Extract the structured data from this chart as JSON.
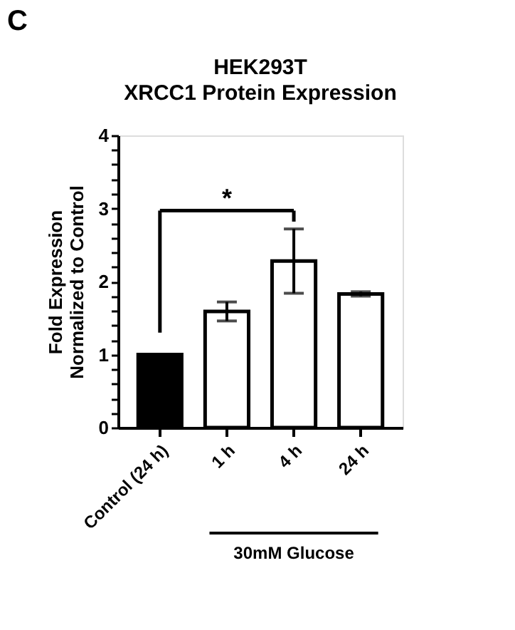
{
  "chart_data": {
    "type": "bar",
    "title": "HEK293T\nXRCC1 Protein Expression",
    "ylabel": "Fold Expression\nNormalized to Control",
    "categories": [
      "Control (24 h)",
      "1 h",
      "4 h",
      "24 h"
    ],
    "values": [
      1.0,
      1.59,
      2.28,
      1.83
    ],
    "errors": [
      null,
      0.13,
      0.44,
      0.03
    ],
    "colors": [
      "#000000",
      "#ffffff",
      "#ffffff",
      "#ffffff"
    ],
    "ylim": [
      0,
      4
    ],
    "yticks": [
      0,
      {
        "value": 0.2,
        "label": null
      },
      {
        "value": 0.4,
        "label": null
      },
      {
        "value": 0.6,
        "label": null
      },
      {
        "value": 0.8,
        "label": null
      },
      1,
      {
        "value": 1.2,
        "label": null
      },
      {
        "value": 1.4,
        "label": null
      },
      {
        "value": 1.6,
        "label": null
      },
      {
        "value": 1.8,
        "label": null
      },
      2,
      {
        "value": 2.2,
        "label": null
      },
      {
        "value": 2.4,
        "label": null
      },
      {
        "value": 2.6,
        "label": null
      },
      {
        "value": 2.8,
        "label": null
      },
      3,
      {
        "value": 3.2,
        "label": null
      },
      {
        "value": 3.4,
        "label": null
      },
      {
        "value": 3.6,
        "label": null
      },
      {
        "value": 3.8,
        "label": null
      },
      4
    ],
    "annotations": [
      "C",
      "*",
      "30mM Glucose"
    ]
  }
}
